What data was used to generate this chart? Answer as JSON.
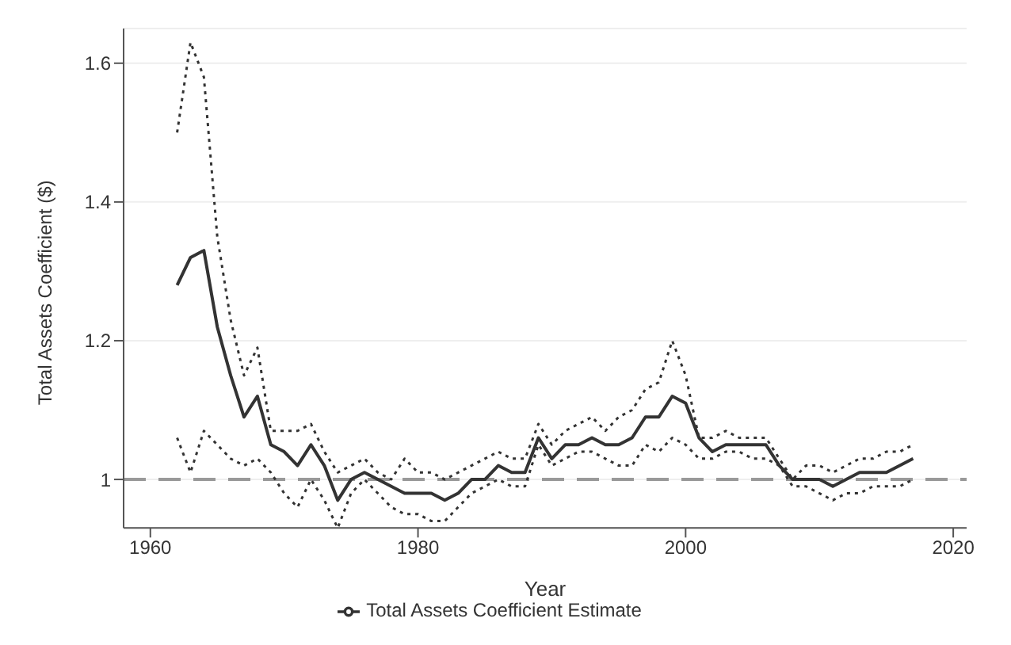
{
  "chart_data": {
    "type": "line",
    "xlabel": "Year",
    "ylabel": "Total Assets Coefficient ($)",
    "x": [
      1962,
      1963,
      1964,
      1965,
      1966,
      1967,
      1968,
      1969,
      1970,
      1971,
      1972,
      1973,
      1974,
      1975,
      1976,
      1977,
      1978,
      1979,
      1980,
      1981,
      1982,
      1983,
      1984,
      1985,
      1986,
      1987,
      1988,
      1989,
      1990,
      1991,
      1992,
      1993,
      1994,
      1995,
      1996,
      1997,
      1998,
      1999,
      2000,
      2001,
      2002,
      2003,
      2004,
      2005,
      2006,
      2007,
      2008,
      2009,
      2010,
      2011,
      2012,
      2013,
      2014,
      2015,
      2016,
      2017
    ],
    "series": [
      {
        "name": "Total Assets Coefficient Estimate",
        "color": "#333333",
        "line_style": "solid",
        "values": [
          1.28,
          1.32,
          1.33,
          1.22,
          1.15,
          1.09,
          1.12,
          1.05,
          1.04,
          1.02,
          1.05,
          1.02,
          0.97,
          1.0,
          1.01,
          1.0,
          0.99,
          0.98,
          0.98,
          0.98,
          0.97,
          0.98,
          1.0,
          1.0,
          1.02,
          1.01,
          1.01,
          1.06,
          1.03,
          1.05,
          1.05,
          1.06,
          1.05,
          1.05,
          1.06,
          1.09,
          1.09,
          1.12,
          1.11,
          1.06,
          1.04,
          1.05,
          1.05,
          1.05,
          1.05,
          1.02,
          1.0,
          1.0,
          1.0,
          0.99,
          1.0,
          1.01,
          1.01,
          1.01,
          1.02,
          1.03
        ]
      },
      {
        "color": "#333333",
        "line_style": "dotted",
        "values": [
          1.06,
          1.01,
          1.07,
          1.05,
          1.03,
          1.02,
          1.03,
          1.01,
          0.98,
          0.96,
          1.0,
          0.97,
          0.93,
          0.98,
          1.0,
          0.98,
          0.96,
          0.95,
          0.95,
          0.94,
          0.94,
          0.96,
          0.98,
          0.99,
          1.0,
          0.99,
          0.99,
          1.05,
          1.02,
          1.03,
          1.04,
          1.04,
          1.03,
          1.02,
          1.02,
          1.05,
          1.04,
          1.06,
          1.05,
          1.03,
          1.03,
          1.04,
          1.04,
          1.03,
          1.03,
          1.02,
          0.99,
          0.99,
          0.98,
          0.97,
          0.98,
          0.98,
          0.99,
          0.99,
          0.99,
          1.0
        ]
      },
      {
        "color": "#333333",
        "line_style": "dotted",
        "values": [
          1.5,
          1.63,
          1.58,
          1.35,
          1.23,
          1.15,
          1.19,
          1.07,
          1.07,
          1.07,
          1.08,
          1.04,
          1.01,
          1.02,
          1.03,
          1.01,
          1.0,
          1.03,
          1.01,
          1.01,
          1.0,
          1.01,
          1.02,
          1.03,
          1.04,
          1.03,
          1.03,
          1.08,
          1.05,
          1.07,
          1.08,
          1.09,
          1.07,
          1.09,
          1.1,
          1.13,
          1.14,
          1.2,
          1.15,
          1.06,
          1.06,
          1.07,
          1.06,
          1.06,
          1.06,
          1.03,
          1.0,
          1.02,
          1.02,
          1.01,
          1.02,
          1.03,
          1.03,
          1.04,
          1.04,
          1.05
        ]
      }
    ],
    "ref_lines": [
      {
        "axis": "y",
        "value": 1,
        "color": "#999999",
        "line_style": "dashed"
      }
    ],
    "xlim": [
      1958,
      2021
    ],
    "xticks": [
      1960,
      1980,
      2000,
      2020
    ],
    "ylim": [
      0.93,
      1.65
    ],
    "yticks": [
      1,
      1.2,
      1.4,
      1.6
    ],
    "grid": "y",
    "legend": "bottom",
    "marker": "none"
  }
}
